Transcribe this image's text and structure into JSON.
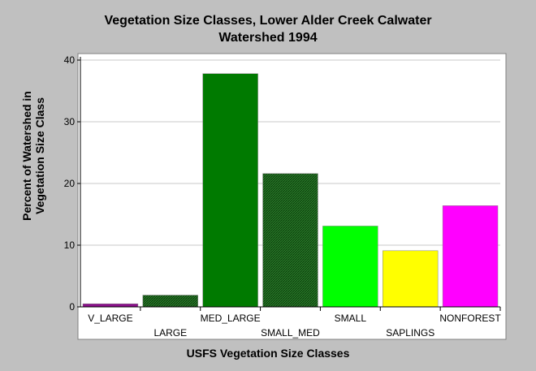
{
  "chart_data": {
    "type": "bar",
    "title_lines": [
      "Vegetation Size Classes, Lower Alder Creek Calwater",
      "Watershed 1994"
    ],
    "xlabel": "USFS Vegetation Size Classes",
    "ylabel_lines": [
      "Percent of Watershed in",
      "Vegetation Size Class"
    ],
    "categories": [
      "V_LARGE",
      "LARGE",
      "MED_LARGE",
      "SMALL_MED",
      "SMALL",
      "SAPLINGS",
      "NONFOREST"
    ],
    "values": [
      0.5,
      1.9,
      37.8,
      21.6,
      13.1,
      9.1,
      16.4
    ],
    "colors": [
      "#8b0f8b",
      "#2e6b2e",
      "#007a00",
      "#1f7a1f",
      "#00ff00",
      "#ffff00",
      "#ff00ff"
    ],
    "hatched": [
      false,
      true,
      false,
      true,
      false,
      false,
      false
    ],
    "yticks": [
      0,
      10,
      20,
      30,
      40
    ],
    "ylim": [
      0,
      40
    ],
    "grid": true,
    "legend": "none"
  }
}
